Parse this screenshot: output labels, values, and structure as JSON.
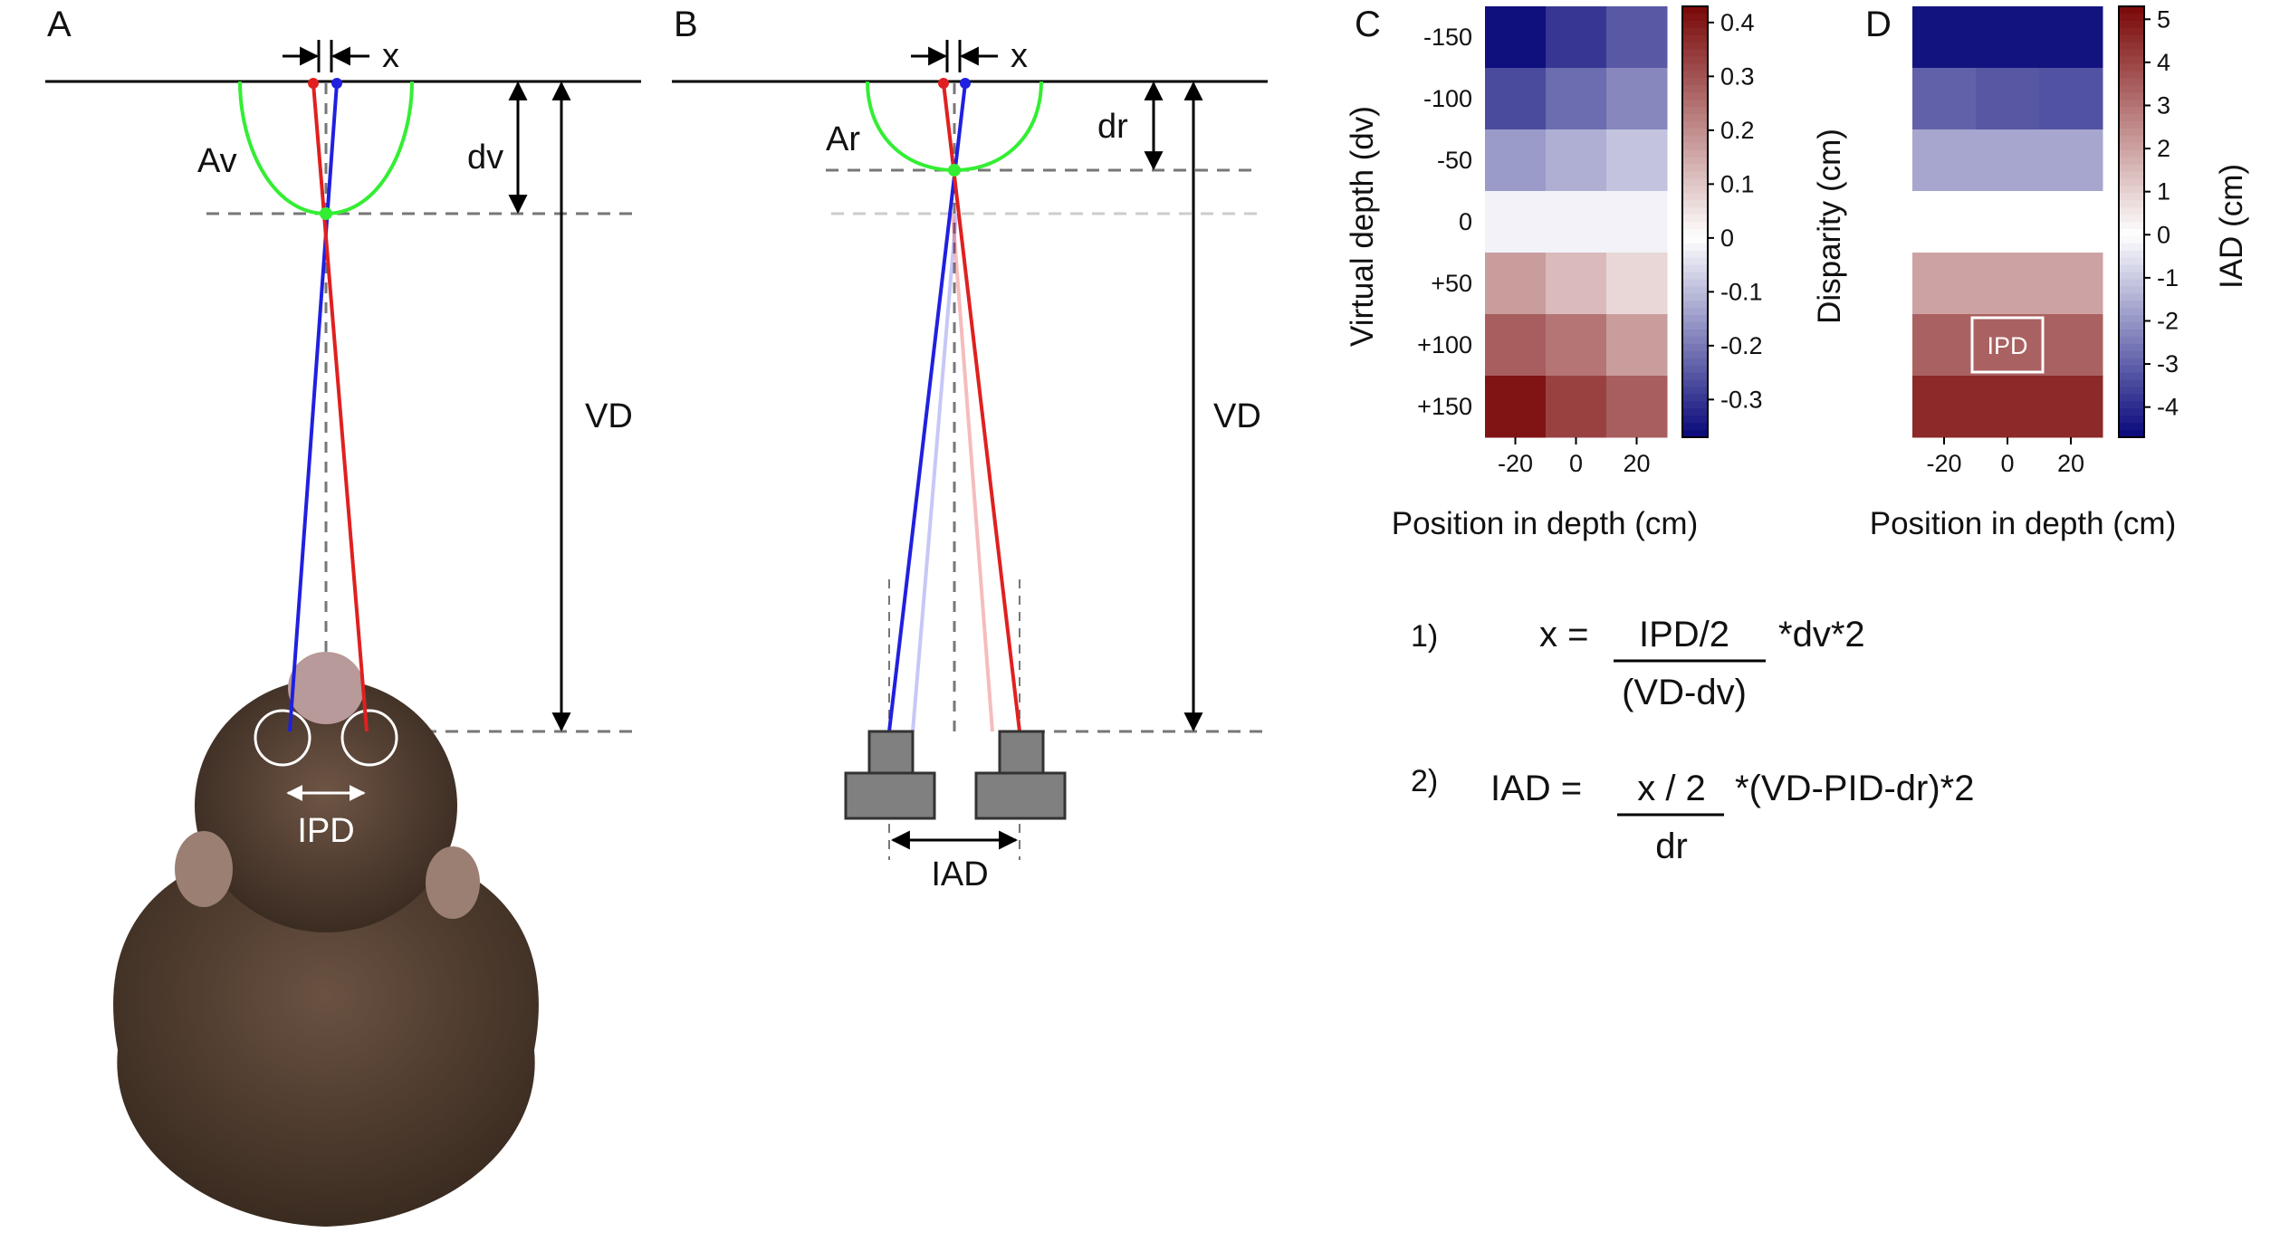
{
  "panels": {
    "a": {
      "letter": "A",
      "offset_label": "x",
      "virtual_depth_label": "dv",
      "arc_label": "Av",
      "viewing_distance_label": "VD",
      "interpupillary_label": "IPD"
    },
    "b": {
      "letter": "B",
      "offset_label": "x",
      "real_depth_label": "dr",
      "arc_label": "Ar",
      "viewing_distance_label": "VD",
      "interaxial_label": "IAD"
    }
  },
  "chart_data": [
    {
      "panel": "C",
      "type": "heatmap",
      "title": "",
      "xlabel": "Position in depth (cm)",
      "ylabel": "Virtual depth (dv)",
      "colorbar_label": "Disparity (cm)",
      "x": [
        "-20",
        "0",
        "20"
      ],
      "y": [
        "-150",
        "-100",
        "-50",
        "0",
        "+50",
        "+100",
        "+150"
      ],
      "values": [
        [
          -0.36,
          -0.3,
          -0.25
        ],
        [
          -0.27,
          -0.22,
          -0.18
        ],
        [
          -0.15,
          -0.12,
          -0.09
        ],
        [
          -0.02,
          -0.02,
          -0.02
        ],
        [
          0.17,
          0.12,
          0.07
        ],
        [
          0.28,
          0.24,
          0.17
        ],
        [
          0.41,
          0.33,
          0.28
        ]
      ],
      "zlim": [
        -0.37,
        0.43
      ],
      "colorbar_ticks": [
        "0.4",
        "0.3",
        "0.2",
        "0.1",
        "0",
        "-0.1",
        "-0.2",
        "-0.3"
      ],
      "colorbar_tick_values": [
        0.4,
        0.3,
        0.2,
        0.1,
        0,
        -0.1,
        -0.2,
        -0.3
      ],
      "colormap": {
        "low": "#08087a",
        "mid": "#ffffff",
        "high": "#7a0808"
      }
    },
    {
      "panel": "D",
      "type": "heatmap",
      "title": "",
      "xlabel": "Position in depth (cm)",
      "ylabel": "",
      "colorbar_label": "IAD (cm)",
      "x": [
        "-20",
        "0",
        "20"
      ],
      "y": [
        "-150",
        "-100",
        "-50",
        "0",
        "+50",
        "+100",
        "+150"
      ],
      "values": [
        [
          -4.5,
          -4.5,
          -4.5
        ],
        [
          -3.0,
          -3.2,
          -3.3
        ],
        [
          -1.7,
          -1.7,
          -1.7
        ],
        [
          0.0,
          0.0,
          0.0
        ],
        [
          2.0,
          2.0,
          2.0
        ],
        [
          3.4,
          3.4,
          3.4
        ],
        [
          4.6,
          4.6,
          4.6
        ]
      ],
      "zlim": [
        -4.7,
        5.3
      ],
      "colorbar_ticks": [
        "5",
        "4",
        "3",
        "2",
        "1",
        "0",
        "-1",
        "-2",
        "-3",
        "-4"
      ],
      "colorbar_tick_values": [
        5,
        4,
        3,
        2,
        1,
        0,
        -1,
        -2,
        -3,
        -4
      ],
      "colormap": {
        "low": "#08087a",
        "mid": "#ffffff",
        "high": "#7a0808"
      },
      "highlight": {
        "row": 5,
        "col": 1,
        "label": "IPD"
      }
    }
  ],
  "equations": {
    "eq1": {
      "number": "1)",
      "lhs": "x =",
      "numerator": "IPD/2",
      "denominator": "(VD-dv)",
      "rhs": "*dv*2"
    },
    "eq2": {
      "number": "2)",
      "lhs": "IAD =",
      "numerator": "x / 2",
      "denominator": "dr",
      "rhs": "*(VD-PID-dr)*2"
    }
  },
  "colors": {
    "left_eye": "#e02020",
    "right_eye": "#2020e0",
    "arc": "#33ee33",
    "camera": "#808080"
  }
}
